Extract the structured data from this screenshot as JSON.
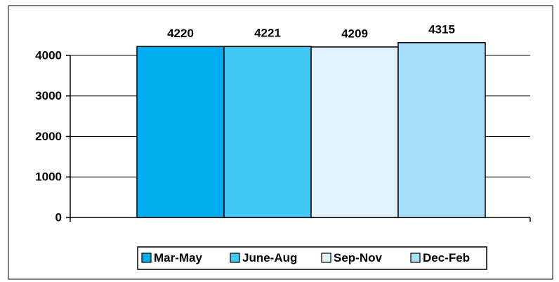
{
  "chart_data": {
    "type": "bar",
    "categories": [
      null
    ],
    "series": [
      {
        "name": "Mar-May",
        "color": "#00adef",
        "values": [
          4220
        ]
      },
      {
        "name": "June-Aug",
        "color": "#40c8f4",
        "values": [
          4221
        ]
      },
      {
        "name": "Sep-Nov",
        "color": "#e0f2fc",
        "values": [
          4209
        ]
      },
      {
        "name": "Dec-Feb",
        "color": "#a8defa",
        "values": [
          4315
        ]
      }
    ],
    "ylim": [
      0,
      4500
    ],
    "yticks": [
      0,
      1000,
      2000,
      3000,
      4000
    ],
    "grid": true,
    "legend": "bottom"
  }
}
